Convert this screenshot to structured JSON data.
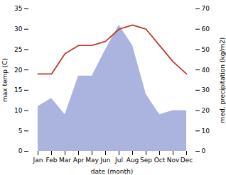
{
  "chart_data": {
    "type": "line",
    "xlabel": "date (month)",
    "ylabel": "max temp (C)",
    "y2label": "med. precipitation (kg/m2)",
    "categories": [
      "Jan",
      "Feb",
      "Mar",
      "Apr",
      "May",
      "Jun",
      "Jul",
      "Aug",
      "Sep",
      "Oct",
      "Nov",
      "Dec"
    ],
    "series": [
      {
        "type": "area",
        "axis": "y2",
        "color": "#aab4df",
        "values": [
          22,
          26,
          18,
          37,
          37,
          50,
          62,
          52,
          28,
          18,
          20,
          20
        ]
      },
      {
        "type": "line",
        "color": "#c0392b",
        "values": [
          19,
          19,
          24,
          26,
          26,
          27,
          30,
          31,
          30,
          26,
          22,
          19
        ]
      }
    ],
    "ylim": [
      0,
      35
    ],
    "yticks": [
      0,
      5,
      10,
      15,
      20,
      25,
      30,
      35
    ],
    "y2lim": [
      0,
      70
    ],
    "y2ticks": [
      0,
      10,
      20,
      30,
      40,
      50,
      60,
      70
    ]
  }
}
